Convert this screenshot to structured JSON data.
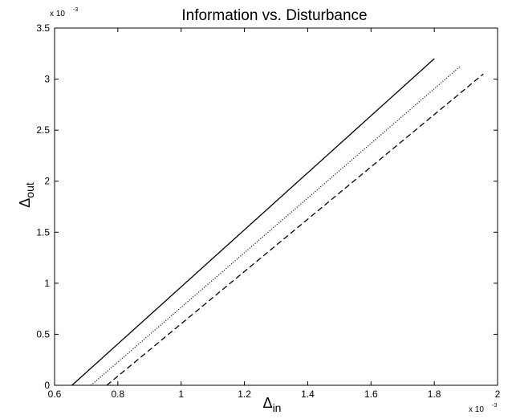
{
  "chart_data": {
    "type": "line",
    "title": "Information vs. Disturbance",
    "xlabel": {
      "symbol": "Δ",
      "subscript": "in"
    },
    "ylabel": {
      "symbol": "Δ",
      "subscript": "out"
    },
    "x_multiplier": {
      "base": "x 10",
      "exponent": "-3"
    },
    "y_multiplier": {
      "base": "x 10",
      "exponent": "-3"
    },
    "xlim": [
      0.6,
      2.0
    ],
    "ylim": [
      0,
      3.5
    ],
    "x_unit_scale": "1e-3",
    "y_unit_scale": "1e-3",
    "xticks": [
      "0.6",
      "0.8",
      "1",
      "1.2",
      "1.4",
      "1.6",
      "1.8",
      "2"
    ],
    "yticks": [
      "0",
      "0.5",
      "1",
      "1.5",
      "2",
      "2.5",
      "3",
      "3.5"
    ],
    "grid": false,
    "legend": null,
    "series": [
      {
        "style": "solid",
        "color": "#000000",
        "x": [
          0.655,
          1.8
        ],
        "y": [
          0.0,
          3.2
        ]
      },
      {
        "style": "dotted",
        "color": "#000000",
        "x": [
          0.715,
          1.88
        ],
        "y": [
          0.0,
          3.12
        ]
      },
      {
        "style": "dashed",
        "color": "#000000",
        "x": [
          0.765,
          1.955
        ],
        "y": [
          0.0,
          3.05
        ]
      }
    ]
  }
}
